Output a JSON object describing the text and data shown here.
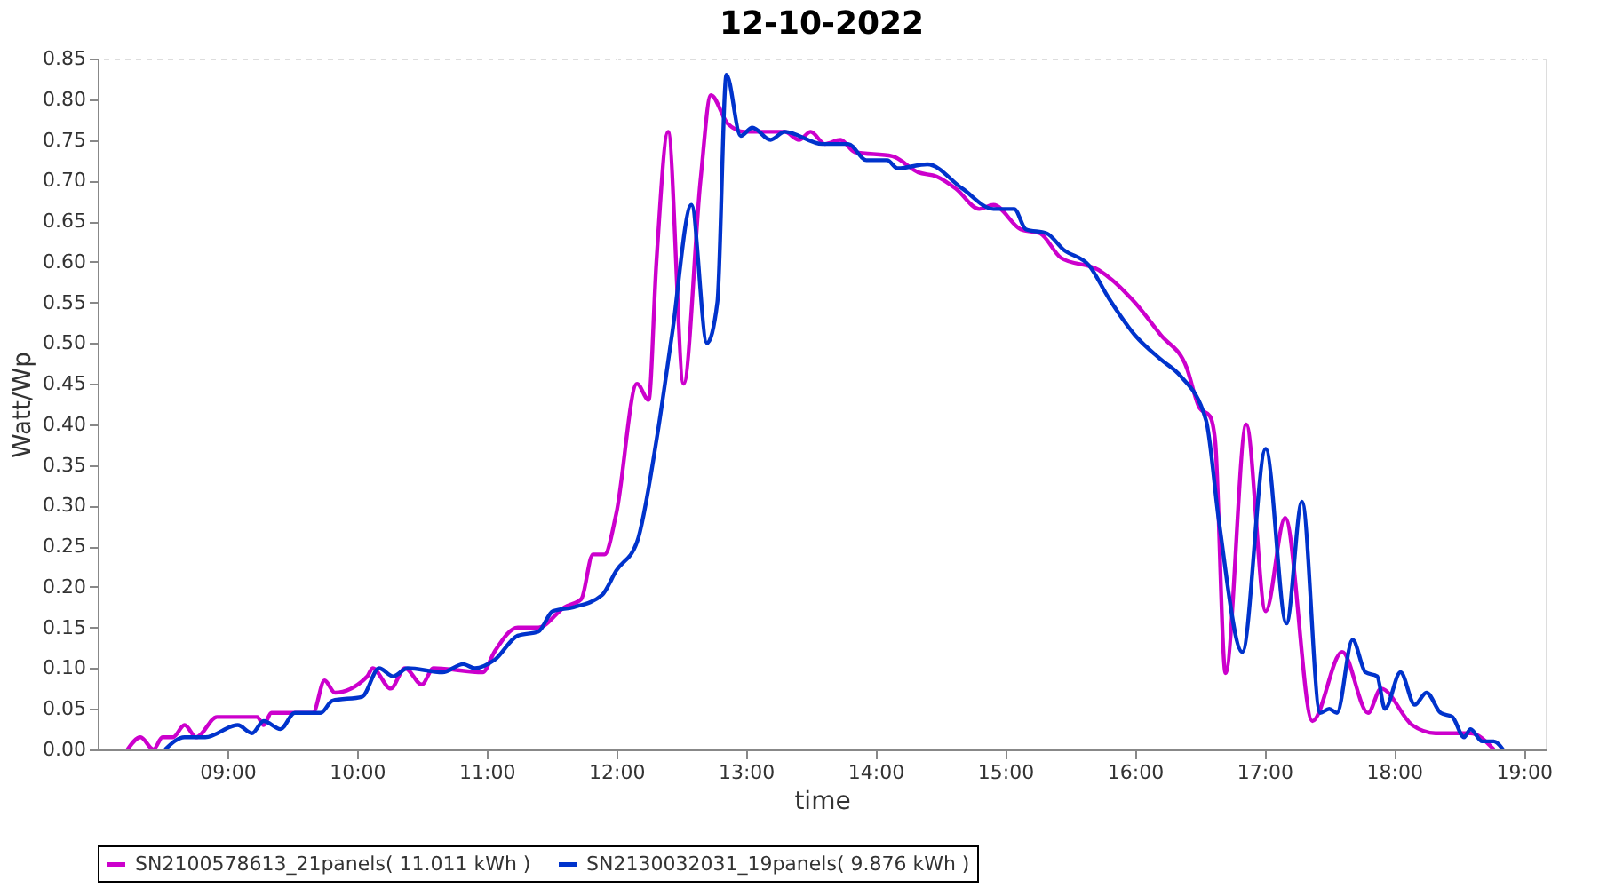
{
  "chart_data": {
    "type": "line",
    "title": "12-10-2022",
    "xlabel": "time",
    "ylabel": "Watt/Wp",
    "xlim": [
      8.0,
      19.17
    ],
    "ylim": [
      0,
      0.85
    ],
    "xticks": [
      {
        "value": 9,
        "label": "09:00"
      },
      {
        "value": 10,
        "label": "10:00"
      },
      {
        "value": 11,
        "label": "11:00"
      },
      {
        "value": 12,
        "label": "12:00"
      },
      {
        "value": 13,
        "label": "13:00"
      },
      {
        "value": 14,
        "label": "14:00"
      },
      {
        "value": 15,
        "label": "15:00"
      },
      {
        "value": 16,
        "label": "16:00"
      },
      {
        "value": 17,
        "label": "17:00"
      },
      {
        "value": 18,
        "label": "18:00"
      },
      {
        "value": 19,
        "label": "19:00"
      }
    ],
    "yticks": [
      {
        "value": 0,
        "label": "0.00"
      },
      {
        "value": 0.05,
        "label": "0.05"
      },
      {
        "value": 0.1,
        "label": "0.10"
      },
      {
        "value": 0.15,
        "label": "0.15"
      },
      {
        "value": 0.2,
        "label": "0.20"
      },
      {
        "value": 0.25,
        "label": "0.25"
      },
      {
        "value": 0.3,
        "label": "0.30"
      },
      {
        "value": 0.35,
        "label": "0.35"
      },
      {
        "value": 0.4,
        "label": "0.40"
      },
      {
        "value": 0.45,
        "label": "0.45"
      },
      {
        "value": 0.5,
        "label": "0.50"
      },
      {
        "value": 0.55,
        "label": "0.55"
      },
      {
        "value": 0.6,
        "label": "0.60"
      },
      {
        "value": 0.65,
        "label": "0.65"
      },
      {
        "value": 0.7,
        "label": "0.70"
      },
      {
        "value": 0.75,
        "label": "0.75"
      },
      {
        "value": 0.8,
        "label": "0.80"
      },
      {
        "value": 0.85,
        "label": "0.85"
      }
    ],
    "grid": true,
    "legend": "bottom",
    "marker": "none",
    "line_style": "solid",
    "series": [
      {
        "name": "SN2100578613_21panels( 11.011 kWh )",
        "color": "#cc00cc",
        "x": [
          8.23,
          8.33,
          8.43,
          8.5,
          8.58,
          8.67,
          8.76,
          8.92,
          9.23,
          9.28,
          9.34,
          9.66,
          9.75,
          9.83,
          10.08,
          10.12,
          10.26,
          10.37,
          10.5,
          10.59,
          10.97,
          11.06,
          11.24,
          11.4,
          11.6,
          11.73,
          11.82,
          11.91,
          12.0,
          12.16,
          12.25,
          12.31,
          12.4,
          12.52,
          12.65,
          12.73,
          12.86,
          12.99,
          13.3,
          13.41,
          13.5,
          13.61,
          13.73,
          13.84,
          14.13,
          14.33,
          14.47,
          14.62,
          14.8,
          14.91,
          15.12,
          15.27,
          15.43,
          15.72,
          16.0,
          16.2,
          16.4,
          16.5,
          16.58,
          16.62,
          16.7,
          16.86,
          17.01,
          17.16,
          17.37,
          17.6,
          17.8,
          17.9,
          18.14,
          18.32,
          18.59,
          18.77
        ],
        "values": [
          0.0,
          0.015,
          0.0,
          0.015,
          0.015,
          0.03,
          0.015,
          0.04,
          0.04,
          0.03,
          0.045,
          0.045,
          0.085,
          0.07,
          0.09,
          0.1,
          0.075,
          0.1,
          0.08,
          0.1,
          0.095,
          0.12,
          0.15,
          0.15,
          0.175,
          0.185,
          0.24,
          0.24,
          0.29,
          0.45,
          0.43,
          0.6,
          0.76,
          0.45,
          0.7,
          0.805,
          0.77,
          0.76,
          0.76,
          0.75,
          0.76,
          0.745,
          0.75,
          0.735,
          0.73,
          0.71,
          0.705,
          0.69,
          0.665,
          0.67,
          0.64,
          0.635,
          0.605,
          0.59,
          0.55,
          0.51,
          0.47,
          0.42,
          0.41,
          0.38,
          0.094,
          0.4,
          0.17,
          0.285,
          0.035,
          0.12,
          0.045,
          0.075,
          0.03,
          0.02,
          0.02,
          0.0
        ]
      },
      {
        "name": "SN2130032031_19panels( 9.876 kWh )",
        "color": "#0033cc",
        "x": [
          8.52,
          8.67,
          8.83,
          9.08,
          9.19,
          9.28,
          9.41,
          9.52,
          9.72,
          9.81,
          10.04,
          10.17,
          10.28,
          10.39,
          10.66,
          10.82,
          10.91,
          11.06,
          11.24,
          11.4,
          11.51,
          11.67,
          11.89,
          12.0,
          12.16,
          12.31,
          12.43,
          12.58,
          12.7,
          12.78,
          12.85,
          12.96,
          13.05,
          13.19,
          13.3,
          13.59,
          13.79,
          13.93,
          14.09,
          14.17,
          14.4,
          14.67,
          14.91,
          15.07,
          15.16,
          15.32,
          15.45,
          15.65,
          15.8,
          16.0,
          16.2,
          16.35,
          16.55,
          16.65,
          16.83,
          17.01,
          17.17,
          17.29,
          17.43,
          17.5,
          17.56,
          17.68,
          17.78,
          17.87,
          17.93,
          18.05,
          18.16,
          18.25,
          18.36,
          18.45,
          18.54,
          18.59,
          18.68,
          18.77,
          18.84
        ],
        "values": [
          0.0,
          0.015,
          0.015,
          0.03,
          0.02,
          0.035,
          0.025,
          0.045,
          0.045,
          0.06,
          0.065,
          0.1,
          0.09,
          0.1,
          0.095,
          0.105,
          0.1,
          0.11,
          0.14,
          0.145,
          0.17,
          0.175,
          0.19,
          0.22,
          0.255,
          0.38,
          0.51,
          0.67,
          0.5,
          0.55,
          0.83,
          0.755,
          0.765,
          0.75,
          0.76,
          0.745,
          0.745,
          0.725,
          0.725,
          0.715,
          0.72,
          0.69,
          0.665,
          0.665,
          0.64,
          0.635,
          0.615,
          0.595,
          0.555,
          0.51,
          0.48,
          0.46,
          0.405,
          0.28,
          0.12,
          0.37,
          0.155,
          0.305,
          0.045,
          0.05,
          0.045,
          0.135,
          0.095,
          0.09,
          0.05,
          0.095,
          0.055,
          0.07,
          0.045,
          0.04,
          0.015,
          0.025,
          0.01,
          0.01,
          0.0
        ]
      }
    ]
  }
}
